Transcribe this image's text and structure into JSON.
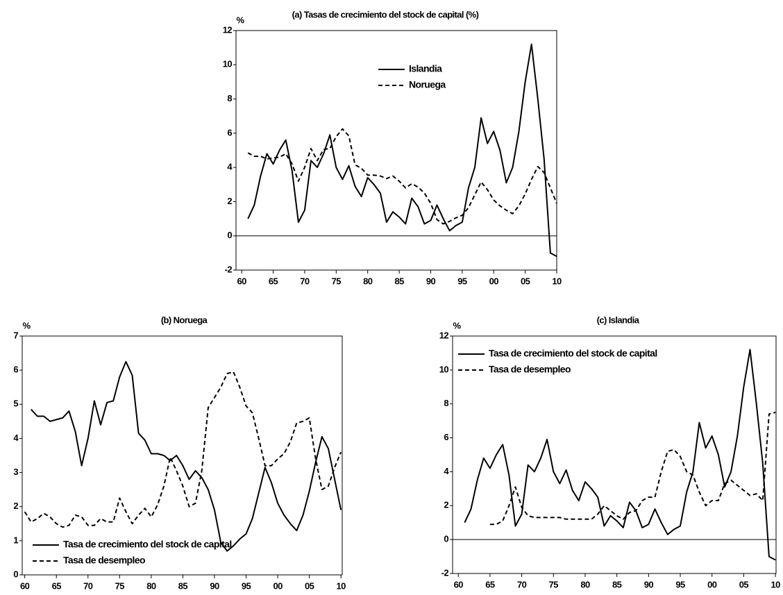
{
  "chart_data": [
    {
      "type": "line",
      "title": "(a) Tasas de crecimiento del stock de capital (%)",
      "y_label": "%",
      "x": [
        1961,
        1962,
        1963,
        1964,
        1965,
        1966,
        1967,
        1968,
        1969,
        1970,
        1971,
        1972,
        1973,
        1974,
        1975,
        1976,
        1977,
        1978,
        1979,
        1980,
        1981,
        1982,
        1983,
        1984,
        1985,
        1986,
        1987,
        1988,
        1989,
        1990,
        1991,
        1992,
        1993,
        1994,
        1995,
        1996,
        1997,
        1998,
        1999,
        2000,
        2001,
        2002,
        2003,
        2004,
        2005,
        2006,
        2007,
        2008,
        2009,
        2010
      ],
      "series": [
        {
          "name": "Islandia",
          "color": "#000000",
          "style": "solid",
          "values": [
            1.0,
            1.8,
            3.5,
            4.8,
            4.2,
            5.0,
            5.6,
            3.8,
            0.8,
            1.5,
            4.4,
            4.0,
            4.8,
            5.9,
            4.0,
            3.3,
            4.1,
            2.9,
            2.3,
            3.4,
            3.0,
            2.5,
            0.8,
            1.4,
            1.1,
            0.7,
            2.2,
            1.7,
            0.7,
            0.9,
            1.8,
            1.0,
            0.3,
            0.6,
            0.8,
            2.8,
            4.0,
            6.9,
            5.4,
            6.1,
            5.0,
            3.1,
            4.0,
            6.1,
            9.0,
            11.2,
            8.0,
            4.5,
            -1.0,
            -1.2
          ]
        },
        {
          "name": "Noruega",
          "color": "#000000",
          "style": "dashed",
          "values": [
            4.85,
            4.65,
            4.65,
            4.5,
            4.55,
            4.6,
            4.8,
            4.2,
            3.2,
            4.0,
            5.1,
            4.4,
            5.05,
            5.1,
            5.8,
            6.25,
            5.85,
            4.15,
            3.95,
            3.55,
            3.55,
            3.5,
            3.35,
            3.5,
            3.2,
            2.8,
            3.05,
            2.85,
            2.5,
            1.9,
            0.95,
            0.7,
            0.85,
            1.05,
            1.2,
            1.65,
            2.4,
            3.15,
            2.7,
            2.1,
            1.75,
            1.5,
            1.3,
            1.75,
            2.45,
            3.3,
            4.05,
            3.7,
            2.8,
            1.9
          ]
        }
      ],
      "xlim": [
        1959.1,
        2010
      ],
      "ylim": [
        -2,
        12
      ],
      "yticks": [
        -2,
        0,
        2,
        4,
        6,
        8,
        10,
        12
      ],
      "xticks": [
        {
          "value": 1960,
          "label": "60"
        },
        {
          "value": 1965,
          "label": "65"
        },
        {
          "value": 1970,
          "label": "70"
        },
        {
          "value": 1975,
          "label": "75"
        },
        {
          "value": 1980,
          "label": "80"
        },
        {
          "value": 1985,
          "label": "85"
        },
        {
          "value": 1990,
          "label": "90"
        },
        {
          "value": 1995,
          "label": "95"
        },
        {
          "value": 2000,
          "label": "00"
        },
        {
          "value": 2005,
          "label": "05"
        },
        {
          "value": 2010,
          "label": "10"
        }
      ],
      "zero_line": true,
      "legend": "upper center"
    },
    {
      "type": "line",
      "title": "(b) Noruega",
      "y_label": "%",
      "x": [
        1960,
        1961,
        1962,
        1963,
        1964,
        1965,
        1966,
        1967,
        1968,
        1969,
        1970,
        1971,
        1972,
        1973,
        1974,
        1975,
        1976,
        1977,
        1978,
        1979,
        1980,
        1981,
        1982,
        1983,
        1984,
        1985,
        1986,
        1987,
        1988,
        1989,
        1990,
        1991,
        1992,
        1993,
        1994,
        1995,
        1996,
        1997,
        1998,
        1999,
        2000,
        2001,
        2002,
        2003,
        2004,
        2005,
        2006,
        2007,
        2008,
        2009,
        2010
      ],
      "series": [
        {
          "name": "Tasa de crecimiento del stock de capital",
          "color": "#000000",
          "style": "solid",
          "values": [
            null,
            4.85,
            4.65,
            4.65,
            4.5,
            4.55,
            4.6,
            4.8,
            4.2,
            3.2,
            4.0,
            5.1,
            4.4,
            5.05,
            5.1,
            5.8,
            6.25,
            5.85,
            4.15,
            3.95,
            3.55,
            3.55,
            3.5,
            3.35,
            3.5,
            3.2,
            2.8,
            3.05,
            2.85,
            2.5,
            1.9,
            0.95,
            0.7,
            0.85,
            1.05,
            1.2,
            1.65,
            2.4,
            3.15,
            2.7,
            2.1,
            1.75,
            1.5,
            1.3,
            1.75,
            2.45,
            3.3,
            4.05,
            3.7,
            2.8,
            1.9
          ]
        },
        {
          "name": "Tasa de desempleo",
          "color": "#000000",
          "style": "dashed",
          "values": [
            1.85,
            1.55,
            1.65,
            1.8,
            1.7,
            1.5,
            1.4,
            1.45,
            1.75,
            1.7,
            1.45,
            1.45,
            1.65,
            1.55,
            1.55,
            2.25,
            1.85,
            1.5,
            1.75,
            1.95,
            1.7,
            2.05,
            2.6,
            3.45,
            3.05,
            2.6,
            2.0,
            2.1,
            3.05,
            4.9,
            5.2,
            5.5,
            5.9,
            5.95,
            5.5,
            4.95,
            4.75,
            4.0,
            3.2,
            3.2,
            3.4,
            3.55,
            3.9,
            4.45,
            4.5,
            4.6,
            3.4,
            2.5,
            2.6,
            3.15,
            3.6
          ]
        }
      ],
      "xlim": [
        1959.6,
        2010.2
      ],
      "ylim": [
        0,
        7
      ],
      "yticks": [
        0,
        1,
        2,
        3,
        4,
        5,
        6,
        7
      ],
      "xticks": [
        {
          "value": 1960,
          "label": "60"
        },
        {
          "value": 1965,
          "label": "65"
        },
        {
          "value": 1970,
          "label": "70"
        },
        {
          "value": 1975,
          "label": "75"
        },
        {
          "value": 1980,
          "label": "80"
        },
        {
          "value": 1985,
          "label": "85"
        },
        {
          "value": 1990,
          "label": "90"
        },
        {
          "value": 1995,
          "label": "95"
        },
        {
          "value": 2000,
          "label": "00"
        },
        {
          "value": 2005,
          "label": "05"
        },
        {
          "value": 2010,
          "label": "10"
        }
      ],
      "zero_line": false,
      "legend": "lower left"
    },
    {
      "type": "line",
      "title": "(c) Islandia",
      "y_label": "%",
      "x": [
        1961,
        1962,
        1963,
        1964,
        1965,
        1966,
        1967,
        1968,
        1969,
        1970,
        1971,
        1972,
        1973,
        1974,
        1975,
        1976,
        1977,
        1978,
        1979,
        1980,
        1981,
        1982,
        1983,
        1984,
        1985,
        1986,
        1987,
        1988,
        1989,
        1990,
        1991,
        1992,
        1993,
        1994,
        1995,
        1996,
        1997,
        1998,
        1999,
        2000,
        2001,
        2002,
        2003,
        2004,
        2005,
        2006,
        2007,
        2008,
        2009,
        2010
      ],
      "series": [
        {
          "name": "Tasa de crecimiento del stock de capital",
          "color": "#000000",
          "style": "solid",
          "values": [
            1.0,
            1.8,
            3.5,
            4.8,
            4.2,
            5.0,
            5.6,
            3.8,
            0.8,
            1.5,
            4.4,
            4.0,
            4.8,
            5.9,
            4.0,
            3.3,
            4.1,
            2.9,
            2.3,
            3.4,
            3.0,
            2.5,
            0.8,
            1.4,
            1.1,
            0.7,
            2.2,
            1.7,
            0.7,
            0.9,
            1.8,
            1.0,
            0.3,
            0.6,
            0.8,
            2.8,
            4.0,
            6.9,
            5.4,
            6.1,
            5.0,
            3.1,
            4.0,
            6.1,
            9.0,
            11.2,
            8.0,
            4.5,
            -1.0,
            -1.2
          ]
        },
        {
          "name": "Tasa de desempleo",
          "color": "#000000",
          "style": "dashed",
          "values": [
            null,
            null,
            null,
            null,
            0.9,
            0.9,
            1.1,
            2.0,
            3.1,
            1.9,
            1.4,
            1.3,
            1.3,
            1.3,
            1.3,
            1.3,
            1.2,
            1.2,
            1.2,
            1.2,
            1.2,
            1.5,
            2.0,
            1.7,
            1.4,
            1.2,
            1.6,
            1.7,
            2.3,
            2.5,
            2.5,
            4.0,
            5.2,
            5.3,
            4.9,
            4.0,
            3.8,
            2.8,
            2.0,
            2.3,
            2.3,
            3.3,
            3.5,
            3.2,
            2.9,
            2.6,
            2.7,
            2.3,
            7.4,
            7.5
          ]
        }
      ],
      "xlim": [
        1959.1,
        2010.1
      ],
      "ylim": [
        -2,
        12
      ],
      "yticks": [
        -2,
        0,
        2,
        4,
        6,
        8,
        10,
        12
      ],
      "xticks": [
        {
          "value": 1960,
          "label": "60"
        },
        {
          "value": 1965,
          "label": "65"
        },
        {
          "value": 1970,
          "label": "70"
        },
        {
          "value": 1975,
          "label": "75"
        },
        {
          "value": 1980,
          "label": "80"
        },
        {
          "value": 1985,
          "label": "85"
        },
        {
          "value": 1990,
          "label": "90"
        },
        {
          "value": 1995,
          "label": "95"
        },
        {
          "value": 2000,
          "label": "00"
        },
        {
          "value": 2005,
          "label": "05"
        },
        {
          "value": 2010,
          "label": "10"
        }
      ],
      "zero_line": true,
      "legend": "upper left"
    }
  ]
}
